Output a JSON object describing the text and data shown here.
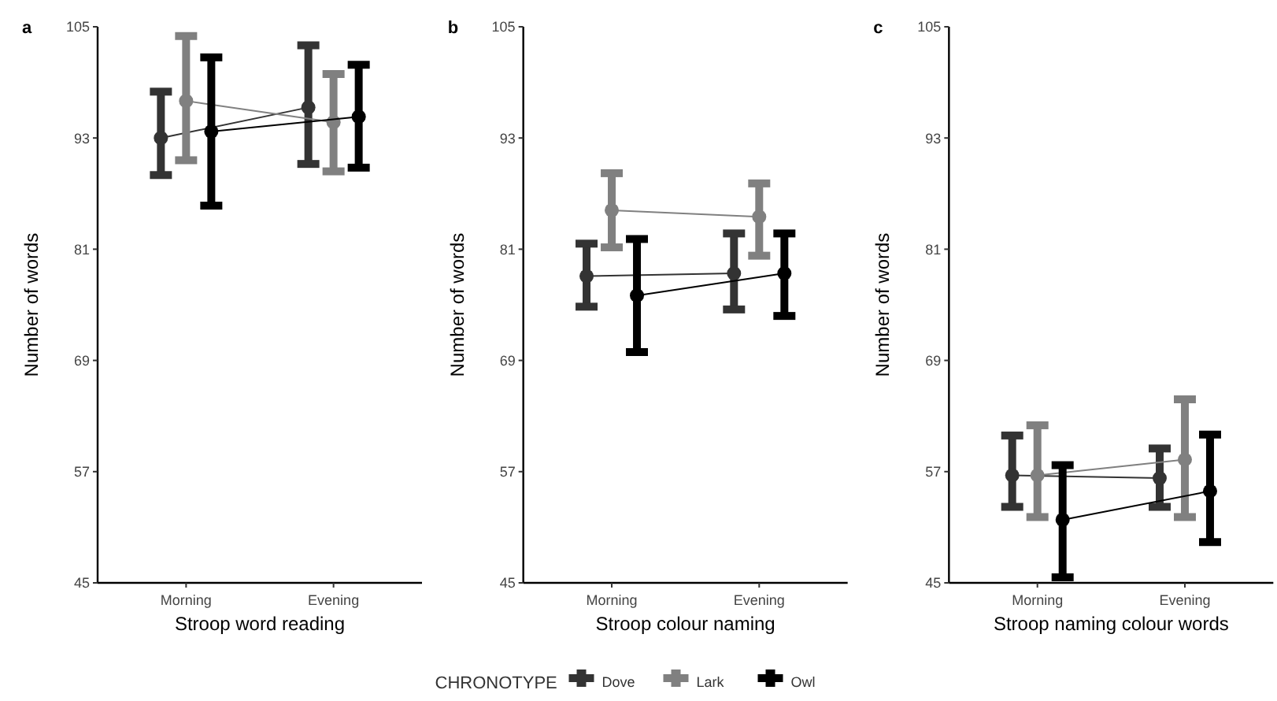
{
  "chart_data": [
    {
      "type": "line",
      "title": "a",
      "xlabel": "Stroop word reading",
      "ylabel": "Number of words",
      "categories": [
        "Morning",
        "Evening"
      ],
      "ylim": [
        45,
        105
      ],
      "yticks": [
        45,
        57,
        69,
        81,
        93,
        105
      ],
      "marker": "circle",
      "legend": "bottom",
      "legend_title": "CHRONOTYPE",
      "series": [
        {
          "name": "Dove",
          "color": "#333333",
          "values": [
            93,
            96.3
          ],
          "errors": [
            [
              89,
              98
            ],
            [
              90.2,
              103
            ]
          ]
        },
        {
          "name": "Lark",
          "color": "#808080",
          "values": [
            97,
            94.7
          ],
          "errors": [
            [
              90.6,
              104
            ],
            [
              89.4,
              99.9
            ]
          ]
        },
        {
          "name": "Owl",
          "color": "#000000",
          "values": [
            93.7,
            95.3
          ],
          "errors": [
            [
              85.7,
              101.7
            ],
            [
              89.8,
              100.9
            ]
          ]
        }
      ]
    },
    {
      "type": "line",
      "title": "b",
      "xlabel": "Stroop colour naming",
      "ylabel": "Number of words",
      "categories": [
        "Morning",
        "Evening"
      ],
      "ylim": [
        45,
        105
      ],
      "yticks": [
        45,
        57,
        69,
        81,
        93,
        105
      ],
      "marker": "circle",
      "series": [
        {
          "color": "#333333",
          "values": [
            78.1,
            78.4
          ],
          "errors": [
            [
              74.8,
              81.6
            ],
            [
              74.5,
              82.7
            ]
          ]
        },
        {
          "color": "#808080",
          "values": [
            85.2,
            84.5
          ],
          "errors": [
            [
              81.2,
              89.2
            ],
            [
              80.3,
              88.1
            ]
          ]
        },
        {
          "color": "#000000",
          "values": [
            76,
            78.4
          ],
          "errors": [
            [
              69.9,
              82.1
            ],
            [
              73.8,
              82.7
            ]
          ]
        }
      ]
    },
    {
      "type": "line",
      "title": "c",
      "xlabel": "Stroop naming colour words",
      "ylabel": "Number of words",
      "categories": [
        "Morning",
        "Evening"
      ],
      "ylim": [
        45,
        105
      ],
      "yticks": [
        45,
        57,
        69,
        81,
        93,
        105
      ],
      "marker": "circle",
      "series": [
        {
          "color": "#333333",
          "values": [
            56.6,
            56.3
          ],
          "errors": [
            [
              53.2,
              60.9
            ],
            [
              53.2,
              59.5
            ]
          ]
        },
        {
          "color": "#808080",
          "values": [
            56.6,
            58.3
          ],
          "errors": [
            [
              52.1,
              62
            ],
            [
              52.1,
              64.8
            ]
          ]
        },
        {
          "color": "#000000",
          "values": [
            51.8,
            54.9
          ],
          "errors": [
            [
              45.6,
              57.7
            ],
            [
              49.4,
              61
            ]
          ]
        }
      ]
    }
  ]
}
